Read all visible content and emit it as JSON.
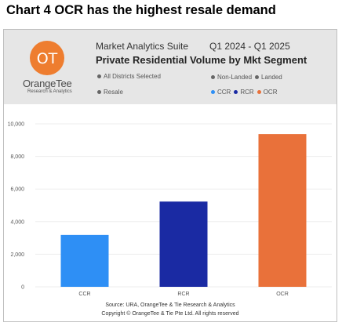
{
  "page": {
    "title": "Chart 4 OCR has the highest resale demand"
  },
  "header": {
    "logo_letters": "OT",
    "logo_name": "OrangeTee",
    "logo_subtitle": "Research & Analytics",
    "suite": "Market Analytics Suite",
    "period": "Q1 2024 - Q1 2025",
    "chart_title": "Private Residential Volume by Mkt Segment",
    "filters": {
      "districts": "All Districts Selected",
      "non_landed": "Non-Landed",
      "landed": "Landed",
      "resale": "Resale"
    },
    "legend": [
      {
        "label": "CCR",
        "color": "#2e8ff5"
      },
      {
        "label": "RCR",
        "color": "#1a2aa3"
      },
      {
        "label": "OCR",
        "color": "#e9713a"
      }
    ]
  },
  "chart_data": {
    "type": "bar",
    "title": "Private Residential Volume by Mkt Segment",
    "categories": [
      "CCR",
      "RCR",
      "OCR"
    ],
    "values": [
      3180,
      5230,
      9370
    ],
    "colors": [
      "#2e8ff5",
      "#1a2aa3",
      "#e9713a"
    ],
    "xlabel": "",
    "ylabel": "",
    "ylim": [
      0,
      10000
    ],
    "yticks": [
      "0",
      "2,000",
      "4,000",
      "6,000",
      "8,000",
      "10,000"
    ],
    "grid": true
  },
  "footer": {
    "source": "Source: URA, OrangeTee & Tie Research & Analytics",
    "copyright": "Copyright © OrangeTee & Tie Pte Ltd. All rights reserved"
  }
}
